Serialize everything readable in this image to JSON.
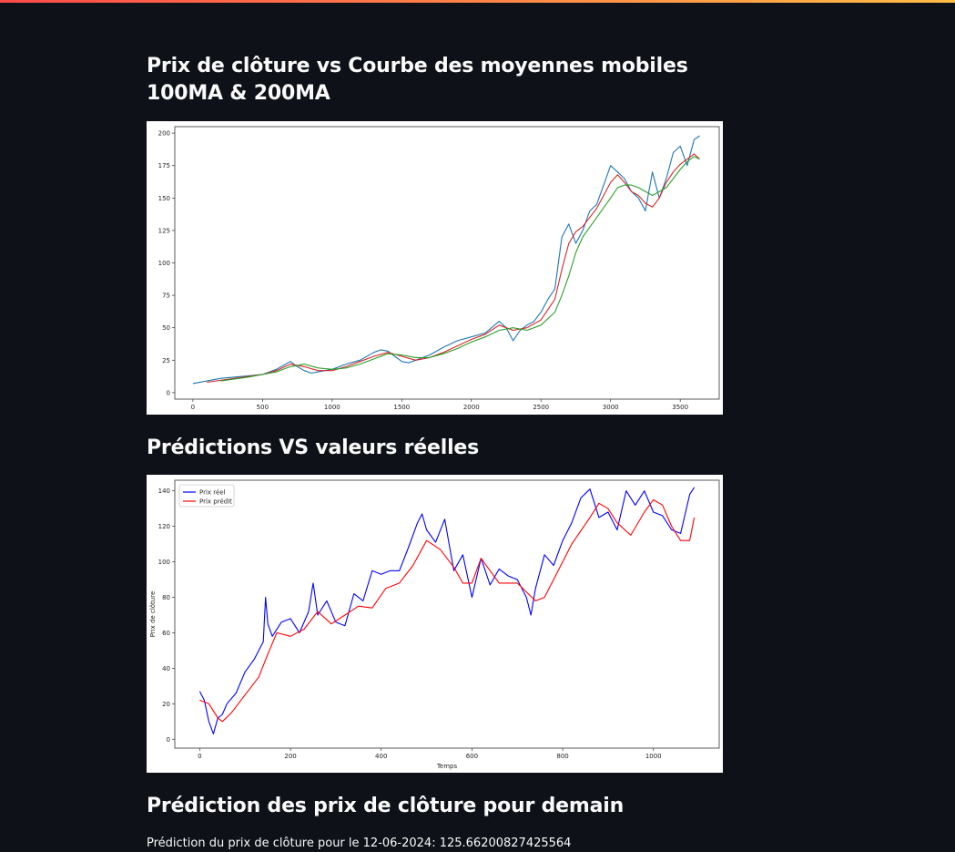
{
  "section1": {
    "title": "Prix de clôture vs Courbe des moyennes mobiles 100MA & 200MA"
  },
  "section2": {
    "title": "Prédictions VS valeurs réelles"
  },
  "section3": {
    "title": "Prédiction des prix de clôture pour demain",
    "prediction_text": "Prédiction du prix de clôture pour le 12-06-2024: 125.66200827425564"
  },
  "chart_data": [
    {
      "type": "line",
      "title": "",
      "xlabel": "",
      "ylabel": "",
      "xlim": [
        -130,
        3780
      ],
      "ylim": [
        -5,
        205
      ],
      "xticks": [
        0,
        500,
        1000,
        1500,
        2000,
        2500,
        3000,
        3500
      ],
      "yticks": [
        0,
        25,
        50,
        75,
        100,
        125,
        150,
        175,
        200
      ],
      "grid": false,
      "legend": "none",
      "series": [
        {
          "color": "#1f77b4",
          "x": [
            0,
            100,
            200,
            300,
            400,
            500,
            550,
            600,
            650,
            700,
            750,
            800,
            850,
            900,
            950,
            1000,
            1100,
            1200,
            1300,
            1350,
            1400,
            1450,
            1500,
            1550,
            1600,
            1650,
            1700,
            1800,
            1900,
            2000,
            2100,
            2200,
            2250,
            2300,
            2350,
            2400,
            2450,
            2500,
            2550,
            2600,
            2650,
            2700,
            2750,
            2800,
            2850,
            2900,
            2950,
            3000,
            3050,
            3100,
            3150,
            3200,
            3250,
            3300,
            3350,
            3400,
            3450,
            3500,
            3550,
            3600,
            3640
          ],
          "values": [
            7,
            9,
            11,
            12,
            13,
            14,
            16,
            18,
            21,
            24,
            20,
            17,
            15,
            16,
            17,
            18,
            22,
            25,
            31,
            33,
            32,
            28,
            24,
            23,
            25,
            27,
            29,
            35,
            40,
            43,
            46,
            55,
            50,
            40,
            48,
            52,
            55,
            62,
            72,
            80,
            120,
            130,
            115,
            125,
            140,
            145,
            160,
            175,
            170,
            165,
            155,
            150,
            140,
            170,
            150,
            165,
            185,
            190,
            175,
            195,
            198
          ]
        },
        {
          "color": "#d62728",
          "x": [
            100,
            300,
            500,
            600,
            700,
            800,
            900,
            1000,
            1100,
            1200,
            1300,
            1400,
            1500,
            1600,
            1700,
            1800,
            1900,
            2000,
            2100,
            2200,
            2300,
            2400,
            2500,
            2600,
            2650,
            2700,
            2750,
            2800,
            2900,
            3000,
            3050,
            3100,
            3150,
            3200,
            3250,
            3300,
            3350,
            3400,
            3450,
            3500,
            3550,
            3600,
            3640
          ],
          "values": [
            8,
            11,
            14,
            17,
            22,
            20,
            17,
            17,
            20,
            24,
            28,
            31,
            28,
            25,
            27,
            31,
            36,
            41,
            45,
            52,
            48,
            50,
            56,
            72,
            95,
            115,
            124,
            128,
            142,
            162,
            168,
            162,
            155,
            152,
            146,
            143,
            150,
            162,
            170,
            176,
            180,
            184,
            180
          ]
        },
        {
          "color": "#2ca02c",
          "x": [
            200,
            400,
            600,
            700,
            800,
            900,
            1000,
            1100,
            1200,
            1300,
            1400,
            1500,
            1600,
            1700,
            1800,
            1900,
            2000,
            2100,
            2200,
            2300,
            2400,
            2500,
            2600,
            2650,
            2700,
            2750,
            2800,
            2900,
            3000,
            3050,
            3100,
            3150,
            3200,
            3300,
            3400,
            3450,
            3500,
            3550,
            3600,
            3640
          ],
          "values": [
            9,
            12,
            16,
            20,
            22,
            19,
            18,
            19,
            22,
            26,
            30,
            29,
            27,
            27,
            30,
            34,
            39,
            43,
            48,
            50,
            48,
            52,
            62,
            75,
            90,
            108,
            120,
            135,
            150,
            158,
            160,
            160,
            158,
            152,
            158,
            165,
            172,
            178,
            182,
            180
          ]
        }
      ]
    },
    {
      "type": "line",
      "title": "",
      "xlabel": "Temps",
      "ylabel": "Prix de clôture",
      "xlim": [
        -55,
        1145
      ],
      "ylim": [
        -5,
        146
      ],
      "xticks": [
        0,
        200,
        400,
        600,
        800,
        1000
      ],
      "yticks": [
        0,
        20,
        40,
        60,
        80,
        100,
        120,
        140
      ],
      "grid": false,
      "legend": "top-left",
      "series": [
        {
          "name": "Prix réel",
          "color": "#0000ff",
          "x": [
            0,
            10,
            20,
            30,
            40,
            50,
            60,
            80,
            100,
            120,
            140,
            145,
            150,
            160,
            180,
            200,
            220,
            240,
            250,
            260,
            280,
            300,
            320,
            340,
            360,
            380,
            400,
            420,
            440,
            460,
            480,
            490,
            500,
            520,
            540,
            560,
            580,
            600,
            620,
            640,
            660,
            680,
            700,
            720,
            730,
            740,
            760,
            780,
            800,
            820,
            840,
            860,
            880,
            900,
            920,
            940,
            960,
            980,
            1000,
            1020,
            1040,
            1060,
            1080,
            1090
          ],
          "values": [
            27,
            22,
            10,
            3,
            12,
            14,
            20,
            26,
            38,
            45,
            55,
            80,
            65,
            58,
            66,
            68,
            60,
            72,
            88,
            70,
            78,
            66,
            64,
            82,
            78,
            95,
            93,
            95,
            95,
            108,
            122,
            127,
            118,
            111,
            124,
            95,
            104,
            80,
            102,
            87,
            96,
            92,
            90,
            80,
            70,
            85,
            104,
            98,
            112,
            122,
            136,
            141,
            125,
            128,
            118,
            140,
            132,
            140,
            128,
            126,
            118,
            116,
            138,
            142
          ]
        },
        {
          "name": "Prix prédit",
          "color": "#ff0000",
          "x": [
            0,
            20,
            40,
            50,
            70,
            100,
            130,
            150,
            170,
            200,
            230,
            260,
            290,
            320,
            350,
            380,
            410,
            440,
            470,
            500,
            530,
            560,
            580,
            600,
            620,
            640,
            660,
            700,
            740,
            760,
            780,
            820,
            860,
            880,
            900,
            920,
            950,
            980,
            1000,
            1020,
            1040,
            1060,
            1080,
            1090
          ],
          "values": [
            22,
            20,
            12,
            10,
            15,
            25,
            35,
            48,
            60,
            58,
            62,
            72,
            65,
            70,
            75,
            74,
            85,
            88,
            98,
            112,
            107,
            97,
            88,
            88,
            102,
            95,
            88,
            88,
            78,
            80,
            90,
            110,
            125,
            133,
            130,
            122,
            115,
            128,
            135,
            132,
            120,
            112,
            112,
            125
          ]
        }
      ]
    }
  ]
}
